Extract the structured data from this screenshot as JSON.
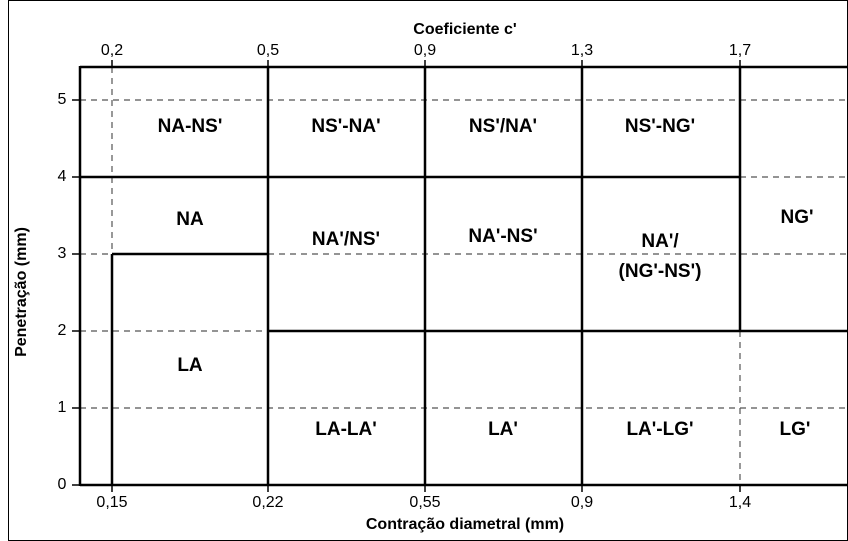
{
  "top_axis": {
    "title": "Coeficiente  c'",
    "ticks": [
      "0,2",
      "0,5",
      "0,9",
      "1,3",
      "1,7"
    ]
  },
  "bottom_axis": {
    "title": "Contração diametral (mm)",
    "ticks": [
      "0,15",
      "0,22",
      "0,55",
      "0,9",
      "1,4"
    ]
  },
  "left_axis": {
    "title": "Penetração (mm)",
    "ticks": [
      "0",
      "1",
      "2",
      "3",
      "4",
      "5"
    ]
  },
  "regions": [
    {
      "lines": [
        "NA-NS'"
      ]
    },
    {
      "lines": [
        "NS'-NA'"
      ]
    },
    {
      "lines": [
        "NS'/NA'"
      ]
    },
    {
      "lines": [
        "NS'-NG'"
      ]
    },
    {
      "lines": [
        "NA"
      ]
    },
    {
      "lines": [
        "NA'/NS'"
      ]
    },
    {
      "lines": [
        "NA'-NS'"
      ]
    },
    {
      "lines": [
        "NA'/",
        "(NG'-NS')"
      ]
    },
    {
      "lines": [
        "NG'"
      ]
    },
    {
      "lines": [
        "LA"
      ]
    },
    {
      "lines": [
        "LA-LA'"
      ]
    },
    {
      "lines": [
        "LA'"
      ]
    },
    {
      "lines": [
        "LA'-LG'"
      ]
    },
    {
      "lines": [
        "LG'"
      ]
    }
  ]
}
